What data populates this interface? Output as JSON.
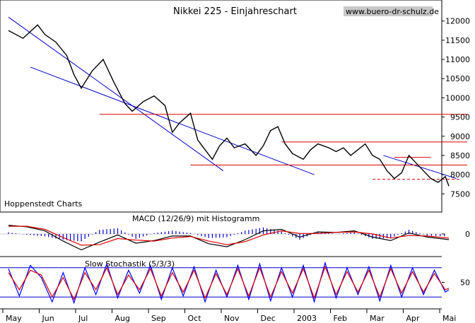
{
  "header": {
    "title": "Nikkei 225 - Einjahreschart",
    "website": "www.buero-dr-schulz.de"
  },
  "panels": {
    "source_label": "Hoppenstedt Charts",
    "macd_label": "MACD (12/26/9) mit Histogramm",
    "stoch_label": "Slow Stochastik (5/3/3)"
  },
  "colors": {
    "price": "#000000",
    "channel": "#0000cc",
    "support": "#dd0000",
    "macd_line": "#000000",
    "signal_line": "#dd0000",
    "histogram": "#0000cc",
    "stoch_k": "#0000ff",
    "stoch_d": "#dd0000"
  },
  "chart_data": [
    {
      "type": "line",
      "title": "Nikkei 225 - Einjahreschart",
      "x_unit": "months (0 = start of May 2002)",
      "ylim": [
        7100,
        12400
      ],
      "yticks": [
        7500,
        8000,
        8500,
        9000,
        9500,
        10000,
        10500,
        11000,
        11500,
        12000
      ],
      "ytick_labels": [
        "7500",
        "8000",
        "8500",
        "9000",
        "9500",
        "10000",
        "10500",
        "11000",
        "11500",
        "12000"
      ],
      "grid": false,
      "series": [
        {
          "values": [
            [
              0.0,
              11750
            ],
            [
              0.4,
              11550
            ],
            [
              0.8,
              11900
            ],
            [
              1.0,
              11650
            ],
            [
              1.3,
              11450
            ],
            [
              1.6,
              11100
            ],
            [
              1.8,
              10600
            ],
            [
              2.0,
              10250
            ],
            [
              2.3,
              10700
            ],
            [
              2.6,
              11000
            ],
            [
              2.9,
              10400
            ],
            [
              3.2,
              9850
            ],
            [
              3.4,
              9650
            ],
            [
              3.7,
              9900
            ],
            [
              4.0,
              10050
            ],
            [
              4.3,
              9800
            ],
            [
              4.5,
              9100
            ],
            [
              4.7,
              9350
            ],
            [
              5.0,
              9600
            ],
            [
              5.2,
              8900
            ],
            [
              5.4,
              8650
            ],
            [
              5.6,
              8400
            ],
            [
              5.8,
              8750
            ],
            [
              6.0,
              8950
            ],
            [
              6.2,
              8700
            ],
            [
              6.5,
              8800
            ],
            [
              6.8,
              8500
            ],
            [
              7.0,
              8750
            ],
            [
              7.2,
              9150
            ],
            [
              7.4,
              9250
            ],
            [
              7.6,
              8800
            ],
            [
              7.8,
              8550
            ],
            [
              8.1,
              8400
            ],
            [
              8.3,
              8650
            ],
            [
              8.5,
              8800
            ],
            [
              8.8,
              8700
            ],
            [
              9.0,
              8600
            ],
            [
              9.2,
              8700
            ],
            [
              9.4,
              8500
            ],
            [
              9.6,
              8650
            ],
            [
              9.8,
              8800
            ],
            [
              10.0,
              8500
            ],
            [
              10.2,
              8400
            ],
            [
              10.4,
              8100
            ],
            [
              10.6,
              7900
            ],
            [
              10.8,
              8050
            ],
            [
              11.0,
              8500
            ],
            [
              11.2,
              8300
            ],
            [
              11.4,
              8100
            ],
            [
              11.6,
              7900
            ],
            [
              11.8,
              7800
            ],
            [
              12.0,
              7950
            ],
            [
              12.1,
              7700
            ]
          ]
        }
      ],
      "annotations": {
        "channel_lines": [
          {
            "x": [
              0.0,
              5.9
            ],
            "y": [
              12100,
              8100
            ]
          },
          {
            "x": [
              0.6,
              8.4
            ],
            "y": [
              10800,
              8000
            ]
          },
          {
            "x": [
              10.3,
              12.3
            ],
            "y": [
              8500,
              7900
            ]
          }
        ],
        "support_lines": [
          {
            "x": [
              2.5,
              12.6
            ],
            "y": 9570
          },
          {
            "x": [
              7.5,
              12.6
            ],
            "y": 8850
          },
          {
            "x": [
              5.0,
              12.6
            ],
            "y": 8250
          },
          {
            "x": [
              10.6,
              11.6
            ],
            "y": 8450
          },
          {
            "x": [
              10.0,
              12.4
            ],
            "y": 7880
          }
        ]
      }
    },
    {
      "type": "line",
      "title": "MACD (12/26/9) mit Histogramm",
      "ylim": [
        -400,
        400
      ],
      "yticks": [
        0
      ],
      "ytick_labels": [
        "0"
      ],
      "series": [
        {
          "values": [
            [
              0.0,
              170
            ],
            [
              0.5,
              140
            ],
            [
              1.0,
              60
            ],
            [
              1.5,
              -140
            ],
            [
              2.0,
              -310
            ],
            [
              2.5,
              -160
            ],
            [
              3.0,
              -20
            ],
            [
              3.5,
              -180
            ],
            [
              4.0,
              -130
            ],
            [
              4.5,
              -40
            ],
            [
              5.0,
              -40
            ],
            [
              5.5,
              -190
            ],
            [
              6.0,
              -250
            ],
            [
              6.5,
              -110
            ],
            [
              7.0,
              60
            ],
            [
              7.5,
              90
            ],
            [
              8.0,
              -60
            ],
            [
              8.5,
              40
            ],
            [
              9.0,
              30
            ],
            [
              9.5,
              60
            ],
            [
              10.0,
              -60
            ],
            [
              10.5,
              -130
            ],
            [
              11.0,
              20
            ],
            [
              11.5,
              -60
            ],
            [
              12.1,
              -110
            ]
          ]
        },
        {
          "values": [
            [
              0.0,
              150
            ],
            [
              0.5,
              150
            ],
            [
              1.0,
              90
            ],
            [
              1.5,
              -70
            ],
            [
              2.0,
              -220
            ],
            [
              2.5,
              -210
            ],
            [
              3.0,
              -90
            ],
            [
              3.5,
              -120
            ],
            [
              4.0,
              -140
            ],
            [
              4.5,
              -80
            ],
            [
              5.0,
              -50
            ],
            [
              5.5,
              -140
            ],
            [
              6.0,
              -210
            ],
            [
              6.5,
              -150
            ],
            [
              7.0,
              -20
            ],
            [
              7.5,
              60
            ],
            [
              8.0,
              10
            ],
            [
              8.5,
              10
            ],
            [
              9.0,
              30
            ],
            [
              9.5,
              40
            ],
            [
              10.0,
              0
            ],
            [
              10.5,
              -80
            ],
            [
              11.0,
              -30
            ],
            [
              11.5,
              -40
            ],
            [
              12.1,
              -80
            ]
          ]
        }
      ]
    },
    {
      "type": "line",
      "title": "Slow Stochastik (5/3/3)",
      "ylim": [
        0,
        100
      ],
      "yticks": [
        50
      ],
      "ytick_labels": [
        "50"
      ],
      "reference_lines": [
        80,
        20
      ],
      "series": [
        {
          "values": [
            [
              0.0,
              78
            ],
            [
              0.3,
              22
            ],
            [
              0.6,
              85
            ],
            [
              0.9,
              60
            ],
            [
              1.2,
              10
            ],
            [
              1.5,
              70
            ],
            [
              1.8,
              8
            ],
            [
              2.1,
              80
            ],
            [
              2.4,
              25
            ],
            [
              2.7,
              88
            ],
            [
              3.0,
              18
            ],
            [
              3.3,
              75
            ],
            [
              3.6,
              28
            ],
            [
              3.9,
              85
            ],
            [
              4.2,
              15
            ],
            [
              4.5,
              80
            ],
            [
              4.8,
              22
            ],
            [
              5.1,
              82
            ],
            [
              5.4,
              10
            ],
            [
              5.7,
              75
            ],
            [
              6.0,
              20
            ],
            [
              6.3,
              85
            ],
            [
              6.6,
              15
            ],
            [
              6.9,
              88
            ],
            [
              7.2,
              12
            ],
            [
              7.5,
              80
            ],
            [
              7.8,
              20
            ],
            [
              8.1,
              85
            ],
            [
              8.4,
              10
            ],
            [
              8.7,
              90
            ],
            [
              9.0,
              18
            ],
            [
              9.3,
              80
            ],
            [
              9.6,
              25
            ],
            [
              9.9,
              82
            ],
            [
              10.2,
              12
            ],
            [
              10.5,
              85
            ],
            [
              10.8,
              20
            ],
            [
              11.1,
              80
            ],
            [
              11.4,
              25
            ],
            [
              11.7,
              75
            ],
            [
              12.0,
              30
            ],
            [
              12.1,
              35
            ]
          ]
        },
        {
          "values": [
            [
              0.0,
              70
            ],
            [
              0.3,
              35
            ],
            [
              0.6,
              75
            ],
            [
              0.9,
              65
            ],
            [
              1.2,
              20
            ],
            [
              1.5,
              60
            ],
            [
              1.8,
              15
            ],
            [
              2.1,
              70
            ],
            [
              2.4,
              35
            ],
            [
              2.7,
              80
            ],
            [
              3.0,
              25
            ],
            [
              3.3,
              65
            ],
            [
              3.6,
              35
            ],
            [
              3.9,
              78
            ],
            [
              4.2,
              22
            ],
            [
              4.5,
              70
            ],
            [
              4.8,
              30
            ],
            [
              5.1,
              75
            ],
            [
              5.4,
              18
            ],
            [
              5.7,
              68
            ],
            [
              6.0,
              25
            ],
            [
              6.3,
              78
            ],
            [
              6.6,
              22
            ],
            [
              6.9,
              80
            ],
            [
              7.2,
              20
            ],
            [
              7.5,
              72
            ],
            [
              7.8,
              28
            ],
            [
              8.1,
              78
            ],
            [
              8.4,
              18
            ],
            [
              8.7,
              82
            ],
            [
              9.0,
              25
            ],
            [
              9.3,
              72
            ],
            [
              9.6,
              30
            ],
            [
              9.9,
              75
            ],
            [
              10.2,
              20
            ],
            [
              10.5,
              78
            ],
            [
              10.8,
              28
            ],
            [
              11.1,
              72
            ],
            [
              11.4,
              30
            ],
            [
              11.7,
              68
            ],
            [
              12.0,
              35
            ],
            [
              12.1,
              38
            ]
          ]
        }
      ]
    }
  ],
  "x_axis": {
    "labels": [
      "May",
      "Jun",
      "Jul",
      "Aug",
      "Sep",
      "Oct",
      "Nov",
      "Dec",
      "2003",
      "Feb",
      "Mar",
      "Apr",
      "Mai"
    ],
    "ticks": [
      0,
      1,
      2,
      3,
      4,
      5,
      6,
      7,
      8,
      9,
      10,
      11,
      12
    ]
  }
}
